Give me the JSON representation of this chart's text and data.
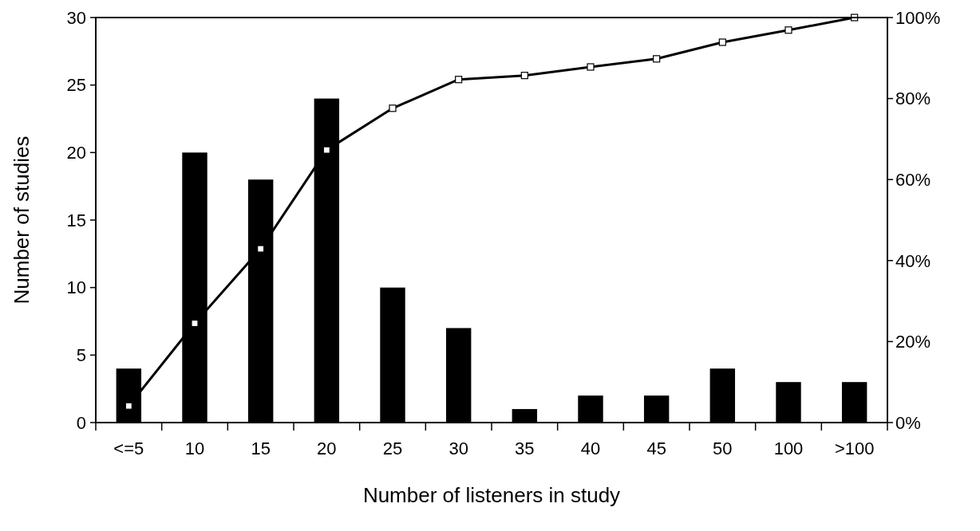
{
  "chart_data": {
    "type": "bar",
    "xlabel": "Number of listeners in study",
    "ylabel": "Number of studies",
    "categories": [
      "<=5",
      "10",
      "15",
      "20",
      "25",
      "30",
      "35",
      "40",
      "45",
      "50",
      "100",
      ">100"
    ],
    "series": [
      {
        "color": "#000000",
        "values": [
          4,
          20,
          18,
          24,
          10,
          7,
          1,
          2,
          2,
          4,
          3,
          3
        ]
      },
      {
        "type": "line",
        "axis": "y2",
        "color": "#000000",
        "marker": "square",
        "values": [
          4.1,
          24.5,
          42.9,
          67.3,
          77.6,
          84.7,
          85.7,
          87.8,
          89.8,
          93.9,
          96.9,
          100
        ]
      }
    ],
    "ylim": [
      0,
      30
    ],
    "yticks": [
      0,
      5,
      10,
      15,
      20,
      25,
      30
    ],
    "y2lim": [
      0,
      100
    ],
    "y2ticks": [
      {
        "value": 0,
        "label": "0%"
      },
      {
        "value": 20,
        "label": "20%"
      },
      {
        "value": 40,
        "label": "40%"
      },
      {
        "value": 60,
        "label": "60%"
      },
      {
        "value": 80,
        "label": "80%"
      },
      {
        "value": 100,
        "label": "100%"
      }
    ],
    "grid": false
  }
}
